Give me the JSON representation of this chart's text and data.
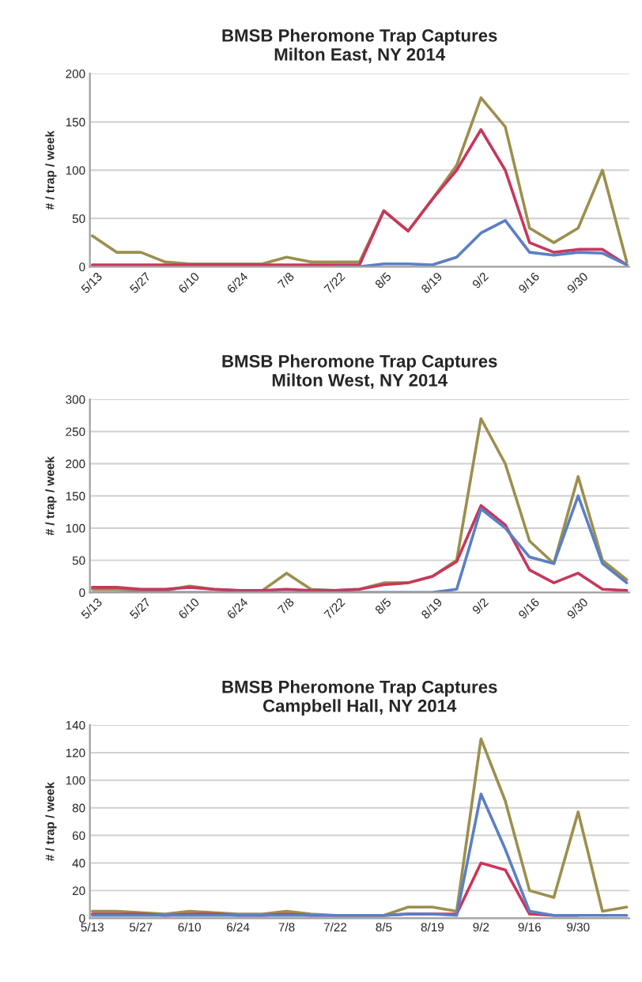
{
  "chart_data": [
    {
      "type": "line",
      "title": "BMSB Pheromone Trap Captures\nMilton East, NY 2014",
      "ylabel": "# / trap / week",
      "categories": [
        "5/13",
        null,
        "5/27",
        null,
        "6/10",
        null,
        "6/24",
        null,
        "7/8",
        null,
        "7/22",
        null,
        "8/5",
        null,
        "8/19",
        null,
        "9/2",
        null,
        "9/16",
        null,
        "9/30",
        null,
        null
      ],
      "ylim": [
        0,
        200
      ],
      "yticks": [
        0,
        50,
        100,
        150,
        200
      ],
      "grid": "y",
      "legend": false,
      "marker": "none",
      "line_style": "solid",
      "series": [
        {
          "color": "#9c8f4e",
          "values": [
            32,
            15,
            15,
            5,
            3,
            3,
            3,
            3,
            10,
            5,
            5,
            5,
            58,
            37,
            70,
            105,
            175,
            145,
            40,
            25,
            40,
            100,
            5
          ]
        },
        {
          "color": "#c8375a",
          "values": [
            2,
            2,
            2,
            2,
            2,
            2,
            2,
            2,
            2,
            2,
            2,
            2,
            58,
            37,
            70,
            100,
            142,
            100,
            25,
            15,
            18,
            18,
            2
          ]
        },
        {
          "color": "#5b7fc4",
          "values": [
            null,
            null,
            null,
            null,
            null,
            null,
            null,
            null,
            null,
            null,
            0,
            0,
            3,
            3,
            2,
            10,
            35,
            48,
            15,
            12,
            15,
            14,
            2
          ]
        }
      ]
    },
    {
      "type": "line",
      "title": "BMSB Pheromone Trap Captures\nMilton West, NY 2014",
      "ylabel": "# / trap / week",
      "categories": [
        "5/13",
        null,
        "5/27",
        null,
        "6/10",
        null,
        "6/24",
        null,
        "7/8",
        null,
        "7/22",
        null,
        "8/5",
        null,
        "8/19",
        null,
        "9/2",
        null,
        "9/16",
        null,
        "9/30",
        null,
        null
      ],
      "ylim": [
        0,
        300
      ],
      "yticks": [
        0,
        50,
        100,
        150,
        200,
        250,
        300
      ],
      "grid": "y",
      "legend": false,
      "marker": "none",
      "line_style": "solid",
      "series": [
        {
          "color": "#9c8f4e",
          "values": [
            5,
            5,
            3,
            3,
            10,
            5,
            3,
            3,
            30,
            5,
            3,
            5,
            15,
            15,
            25,
            50,
            270,
            200,
            80,
            45,
            180,
            50,
            20
          ]
        },
        {
          "color": "#c8375a",
          "values": [
            8,
            8,
            5,
            5,
            8,
            5,
            3,
            3,
            5,
            3,
            3,
            5,
            12,
            15,
            25,
            48,
            135,
            105,
            35,
            15,
            30,
            5,
            3
          ]
        },
        {
          "color": "#5b7fc4",
          "values": [
            0,
            0,
            0,
            0,
            0,
            0,
            0,
            0,
            0,
            0,
            0,
            0,
            0,
            0,
            0,
            5,
            130,
            100,
            55,
            45,
            150,
            45,
            15
          ]
        }
      ]
    },
    {
      "type": "line",
      "title": "BMSB Pheromone Trap Captures\nCampbell Hall, NY 2014",
      "ylabel": "# / trap / week",
      "categories": [
        "5/13",
        null,
        "5/27",
        null,
        "6/10",
        null,
        "6/24",
        null,
        "7/8",
        null,
        "7/22",
        null,
        "8/5",
        null,
        "8/19",
        null,
        "9/2",
        null,
        "9/16",
        null,
        "9/30",
        null,
        null
      ],
      "ylim": [
        0,
        140
      ],
      "yticks": [
        0,
        20,
        40,
        60,
        80,
        100,
        120,
        140
      ],
      "grid": "y",
      "legend": false,
      "marker": "none",
      "line_style": "solid",
      "series": [
        {
          "color": "#9c8f4e",
          "values": [
            5,
            5,
            4,
            3,
            5,
            4,
            3,
            3,
            5,
            3,
            2,
            2,
            2,
            8,
            8,
            5,
            130,
            85,
            20,
            15,
            77,
            5,
            8
          ]
        },
        {
          "color": "#c8375a",
          "values": [
            3,
            3,
            3,
            2,
            3,
            3,
            2,
            2,
            3,
            2,
            2,
            2,
            2,
            3,
            3,
            3,
            40,
            35,
            3,
            2,
            2,
            null,
            null
          ]
        },
        {
          "color": "#5b7fc4",
          "values": [
            2,
            2,
            2,
            2,
            2,
            2,
            2,
            2,
            2,
            2,
            2,
            2,
            2,
            3,
            3,
            2,
            90,
            50,
            5,
            2,
            2,
            2,
            2
          ]
        }
      ]
    }
  ]
}
